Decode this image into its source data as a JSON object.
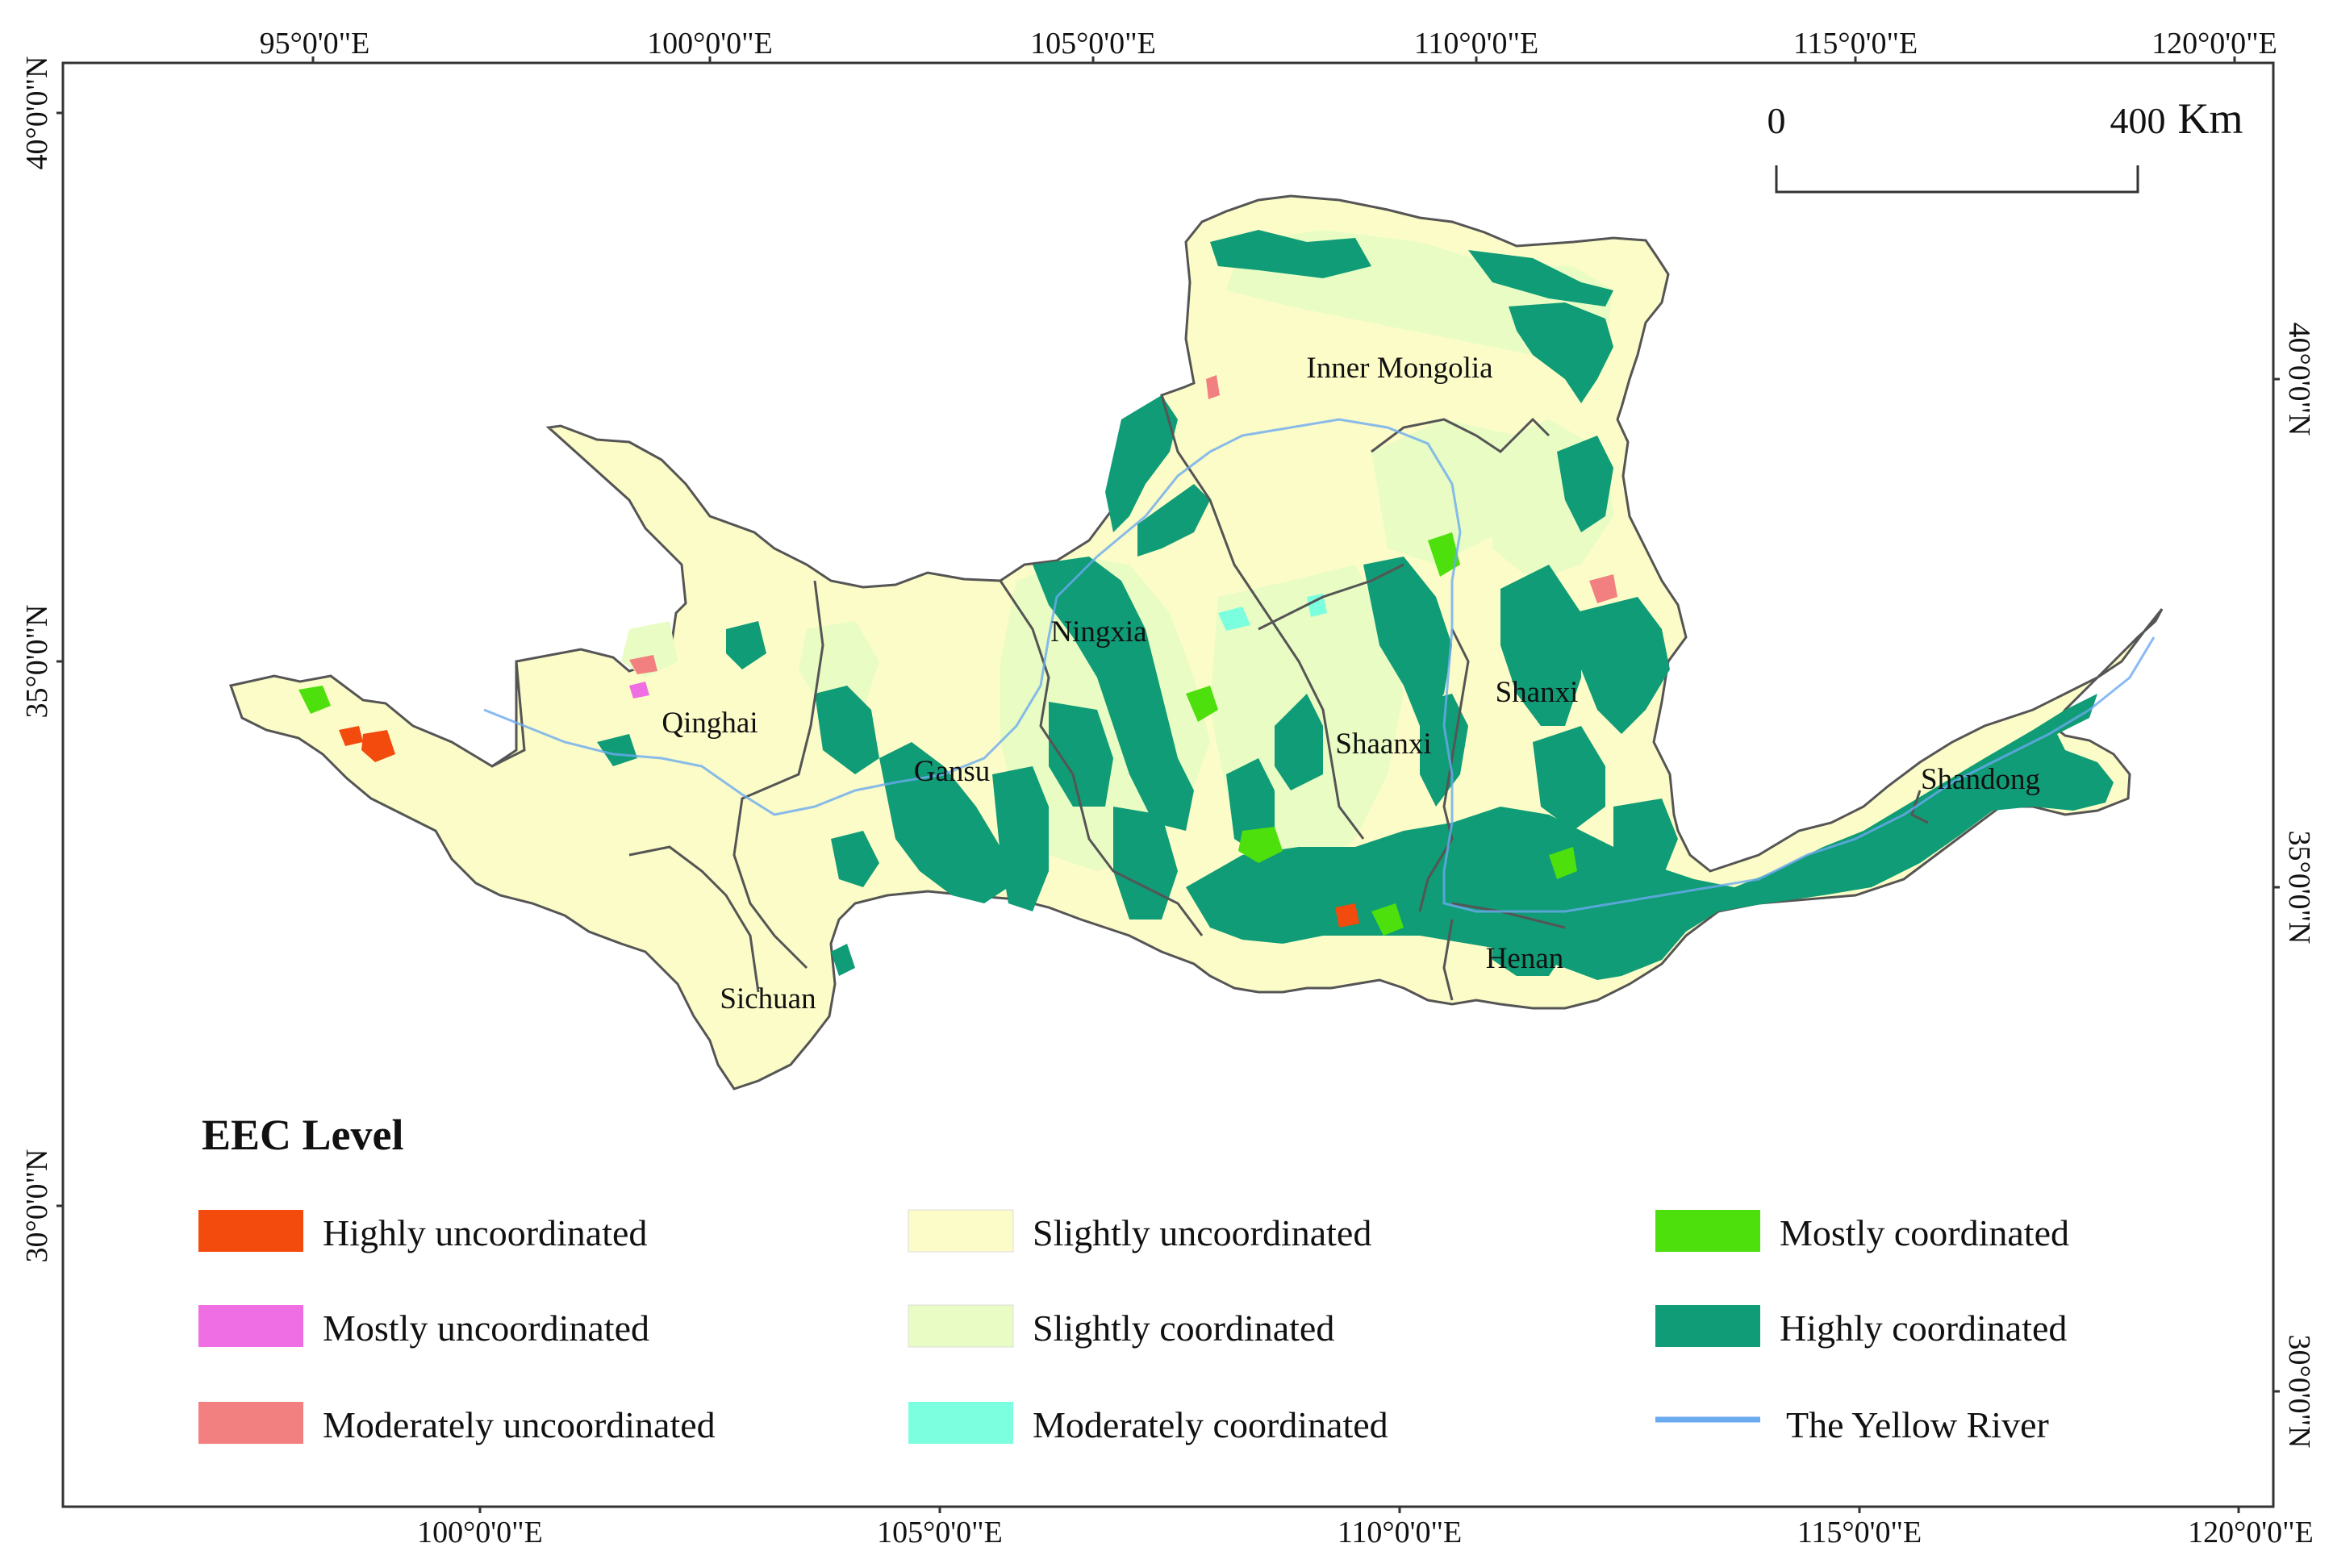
{
  "axes": {
    "top_lon": [
      "95°0'0\"E",
      "100°0'0\"E",
      "105°0'0\"E",
      "110°0'0\"E",
      "115°0'0\"E",
      "120°0'0\"E"
    ],
    "bottom_lon": [
      "100°0'0\"E",
      "105°0'0\"E",
      "110°0'0\"E",
      "115°0'0\"E",
      "120°0'0\"E"
    ],
    "left_lat": [
      "40°0'0\"N",
      "35°0'0\"N",
      "30°0'0\"N"
    ],
    "right_lat": [
      "40°0'0\"N",
      "35°0'0\"N",
      "30°0'0\"N"
    ]
  },
  "scalebar": {
    "start": "0",
    "end": "400",
    "unit": "Km"
  },
  "regions": {
    "inner_mongolia": "Inner Mongolia",
    "ningxia": "Ningxia",
    "qinghai": "Qinghai",
    "gansu": "Gansu",
    "shaanxi": "Shaanxi",
    "shanxi": "Shanxi",
    "shandong": "Shandong",
    "henan": "Henan",
    "sichuan": "Sichuan"
  },
  "legend": {
    "title": "EEC Level",
    "items": [
      {
        "label": "Highly uncoordinated",
        "color": "#F34A0E"
      },
      {
        "label": "Mostly uncoordinated",
        "color": "#F06EE3"
      },
      {
        "label": "Moderately uncoordinated",
        "color": "#F28080"
      },
      {
        "label": "Slightly uncoordinated",
        "color": "#FCFCC8"
      },
      {
        "label": "Slightly coordinated",
        "color": "#E8FCC4"
      },
      {
        "label": "Moderately coordinated",
        "color": "#7BFFDE"
      },
      {
        "label": "Mostly coordinated",
        "color": "#4DE00D"
      },
      {
        "label": "Highly coordinated",
        "color": "#0F9C76"
      },
      {
        "label": "The Yellow River",
        "color": "#6AAAF0"
      }
    ]
  },
  "colors": {
    "boundary": "#555555",
    "frame": "#333333"
  }
}
